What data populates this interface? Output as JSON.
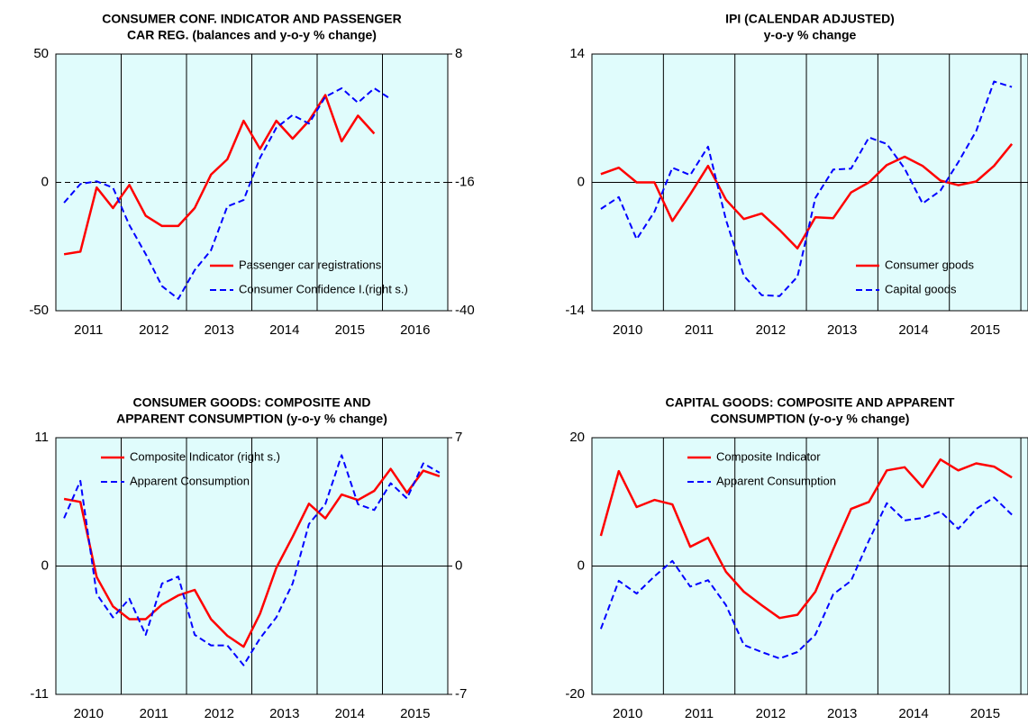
{
  "chart_data": [
    {
      "type": "line",
      "title": [
        "CONSUMER CONF. INDICATOR AND PASSENGER",
        "CAR REG. (balances and y-o-y % change)"
      ],
      "categories": [
        "2011",
        "2012",
        "2013",
        "2014",
        "2015",
        "2016"
      ],
      "x": [
        2011.125,
        2011.375,
        2011.625,
        2011.875,
        2012.125,
        2012.375,
        2012.625,
        2012.875,
        2013.125,
        2013.375,
        2013.625,
        2013.875,
        2014.125,
        2014.375,
        2014.625,
        2014.875,
        2015.125,
        2015.375,
        2015.625,
        2015.875,
        2016.125
      ],
      "xlim": [
        2011,
        2017
      ],
      "xticks": [
        2012,
        2013,
        2014,
        2015,
        2016
      ],
      "ylim": [
        -50,
        50
      ],
      "yticks": [
        -50,
        0,
        50
      ],
      "y2lim": [
        -40,
        8
      ],
      "y2ticks": [
        -40,
        -16,
        8
      ],
      "zero_line": "dashed",
      "legend": "lower right",
      "background": "#e0fcfc",
      "series": [
        {
          "name": "Passenger car registrations",
          "color": "#ff0000",
          "dash": false,
          "values": [
            -28,
            -27,
            -2,
            -10,
            -1,
            -13,
            -17,
            -17,
            -10,
            3,
            9,
            24,
            13,
            24,
            17,
            24,
            34,
            16,
            26,
            19,
            null
          ]
        },
        {
          "name": "Consumer Confidence I.(right s.)",
          "color": "#0000ff",
          "dash": true,
          "axis": "y2",
          "values": [
            -19.8,
            -16.3,
            -15.8,
            -17,
            -24,
            -29.4,
            -35.4,
            -37.8,
            -32.4,
            -28.7,
            -20.5,
            -19.3,
            -11.4,
            -5.8,
            -3.4,
            -5,
            0,
            1.6,
            -1.1,
            1.6,
            -0.4
          ]
        }
      ]
    },
    {
      "type": "line",
      "title": [
        "IPI (CALENDAR ADJUSTED)",
        "y-o-y % change"
      ],
      "categories": [
        "2010",
        "2011",
        "2012",
        "2013",
        "2014",
        "2015"
      ],
      "x": [
        2010.125,
        2010.375,
        2010.625,
        2010.875,
        2011.125,
        2011.375,
        2011.625,
        2011.875,
        2012.125,
        2012.375,
        2012.625,
        2012.875,
        2013.125,
        2013.375,
        2013.625,
        2013.875,
        2014.125,
        2014.375,
        2014.625,
        2014.875,
        2015.125,
        2015.375,
        2015.625,
        2015.875
      ],
      "xlim": [
        2010,
        2016.1
      ],
      "xticks": [
        2011,
        2012,
        2013,
        2014,
        2015,
        2016
      ],
      "ylim": [
        -14,
        14
      ],
      "yticks": [
        -14,
        0,
        14
      ],
      "zero_line": "solid",
      "legend": "lower right",
      "background": "#e0fcfc",
      "series": [
        {
          "name": "Consumer goods",
          "color": "#ff0000",
          "dash": false,
          "values": [
            0.9,
            1.6,
            0,
            0,
            -4.2,
            -1.3,
            1.8,
            -1.9,
            -4,
            -3.4,
            -5.2,
            -7.2,
            -3.8,
            -3.9,
            -1.1,
            0,
            1.9,
            2.8,
            1.8,
            0.2,
            -0.3,
            0.1,
            1.8,
            4.2
          ]
        },
        {
          "name": "Capital goods",
          "color": "#0000ff",
          "dash": true,
          "values": [
            -2.9,
            -1.6,
            -6.2,
            -3.2,
            1.6,
            0.8,
            3.9,
            -4.1,
            -10.2,
            -12.3,
            -12.4,
            -10.3,
            -1.7,
            1.4,
            1.5,
            4.9,
            4.2,
            1.5,
            -2.3,
            -0.9,
            2.2,
            5.6,
            11,
            10.4
          ]
        }
      ]
    },
    {
      "type": "line",
      "title": [
        "CONSUMER GOODS: COMPOSITE AND",
        "APPARENT CONSUMPTION (y-o-y % change)"
      ],
      "categories": [
        "2010",
        "2011",
        "2012",
        "2013",
        "2014",
        "2015"
      ],
      "x": [
        2010.125,
        2010.375,
        2010.625,
        2010.875,
        2011.125,
        2011.375,
        2011.625,
        2011.875,
        2012.125,
        2012.375,
        2012.625,
        2012.875,
        2013.125,
        2013.375,
        2013.625,
        2013.875,
        2014.125,
        2014.375,
        2014.625,
        2014.875,
        2015.125,
        2015.375,
        2015.625,
        2015.875
      ],
      "xlim": [
        2010,
        2016
      ],
      "xticks": [
        2011,
        2012,
        2013,
        2014,
        2015
      ],
      "ylim": [
        -11,
        11
      ],
      "yticks": [
        -11,
        0,
        11
      ],
      "y2lim": [
        -7,
        7
      ],
      "y2ticks": [
        -7,
        0,
        7
      ],
      "zero_line": "solid",
      "legend": "upper left",
      "background": "#e0fcfc",
      "series": [
        {
          "name": "Composite Indicator (right s.)",
          "color": "#ff0000",
          "dash": false,
          "axis": "y2",
          "values": [
            3.66,
            3.5,
            -0.6,
            -2.2,
            -2.9,
            -2.9,
            -2.1,
            -1.6,
            -1.3,
            -2.9,
            -3.8,
            -4.4,
            -2.6,
            -0.1,
            1.6,
            3.4,
            2.6,
            3.9,
            3.6,
            4.1,
            5.3,
            4,
            5.2,
            4.9
          ]
        },
        {
          "name": "Apparent Consumption",
          "color": "#0000ff",
          "dash": true,
          "values": [
            4.1,
            7.3,
            -2.4,
            -4.4,
            -2.8,
            -5.9,
            -1.5,
            -0.9,
            -5.9,
            -6.8,
            -6.8,
            -8.5,
            -6.2,
            -4.4,
            -1.5,
            3.6,
            5.3,
            9.5,
            5.3,
            4.8,
            7.1,
            5.8,
            8.8,
            8
          ]
        }
      ]
    },
    {
      "type": "line",
      "title": [
        "CAPITAL GOODS: COMPOSITE AND APPARENT",
        "CONSUMPTION (y-o-y % change)"
      ],
      "categories": [
        "2010",
        "2011",
        "2012",
        "2013",
        "2014",
        "2015"
      ],
      "x": [
        2010.125,
        2010.375,
        2010.625,
        2010.875,
        2011.125,
        2011.375,
        2011.625,
        2011.875,
        2012.125,
        2012.375,
        2012.625,
        2012.875,
        2013.125,
        2013.375,
        2013.625,
        2013.875,
        2014.125,
        2014.375,
        2014.625,
        2014.875,
        2015.125,
        2015.375,
        2015.625,
        2015.875
      ],
      "xlim": [
        2010,
        2016.1
      ],
      "xticks": [
        2011,
        2012,
        2013,
        2014,
        2015,
        2016
      ],
      "ylim": [
        -20,
        20
      ],
      "yticks": [
        -20,
        0,
        20
      ],
      "zero_line": "solid",
      "legend": "upper left",
      "background": "#e0fcfc",
      "series": [
        {
          "name": "Composite Indicator",
          "color": "#ff0000",
          "dash": false,
          "values": [
            4.7,
            14.8,
            9.2,
            10.3,
            9.6,
            3,
            4.4,
            -0.9,
            -4,
            -6.1,
            -8.1,
            -7.6,
            -4,
            2.6,
            8.9,
            10,
            14.9,
            15.4,
            12.3,
            16.6,
            14.9,
            16,
            15.5,
            13.8
          ]
        },
        {
          "name": "Apparent Consumption",
          "color": "#0000ff",
          "dash": true,
          "values": [
            -9.8,
            -2.3,
            -4.3,
            -1.6,
            0.8,
            -3.2,
            -2.2,
            -6.1,
            -12.3,
            -13.4,
            -14.4,
            -13.4,
            -10.7,
            -4.4,
            -2.3,
            4,
            9.8,
            7.1,
            7.5,
            8.5,
            5.8,
            8.9,
            10.7,
            8
          ]
        }
      ]
    }
  ]
}
